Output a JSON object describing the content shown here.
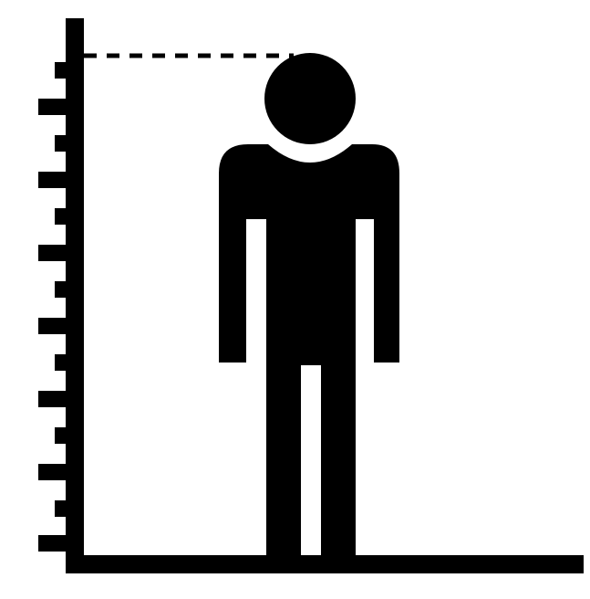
{
  "illustration": {
    "icon": "height-measurement-icon",
    "foreground_color": "#000000",
    "background_color": "#ffffff",
    "height_ruler": {
      "long_ticks": 7,
      "short_ticks_between": 1
    },
    "height_marker": "dashed-line",
    "figure": "standing-person"
  }
}
